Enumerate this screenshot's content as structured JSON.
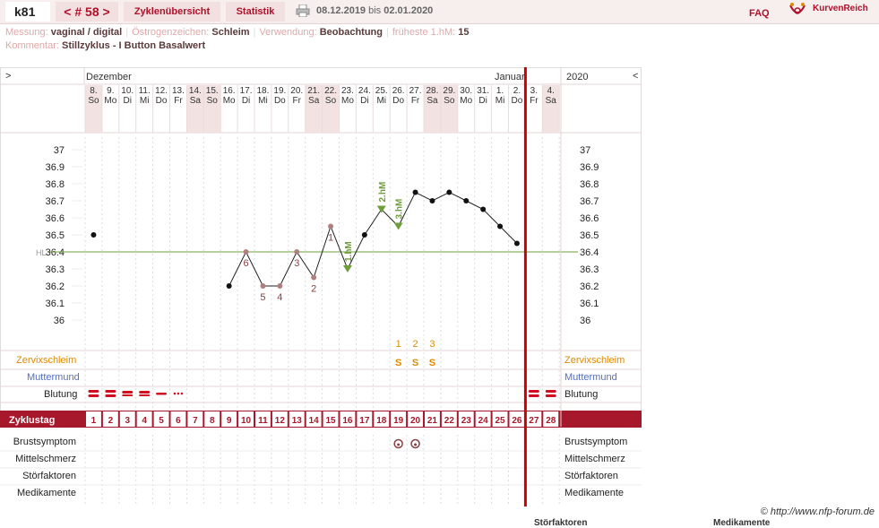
{
  "topbar": {
    "user": "k81",
    "cycle_label": "< # 58 >",
    "overview_label": "Zyklenübersicht",
    "statistics_label": "Statistik",
    "date_from": "08.12.2019",
    "date_to_word": "bis",
    "date_to": "02.01.2020",
    "faq_label": "FAQ",
    "brand": "KurvenReich"
  },
  "info": {
    "measurement_label": "Messung:",
    "measurement_value": "vaginal / digital",
    "estrogen_label": "Östrogenzeichen:",
    "estrogen_value": "Schleim",
    "usage_label": "Verwendung:",
    "usage_value": "Beobachtung",
    "earliest_label": "früheste 1.hM:",
    "earliest_value": "15",
    "comment_label": "Kommentar:",
    "comment_value": "Stillzyklus - I Button Basalwert"
  },
  "chart": {
    "nav_left": ">",
    "nav_right": "<",
    "month_dec": "Dezember",
    "month_jan": "Januar",
    "year": "2020",
    "days": [
      {
        "d": "8.",
        "w": "So",
        "we": true
      },
      {
        "d": "9.",
        "w": "Mo",
        "we": false
      },
      {
        "d": "10.",
        "w": "Di",
        "we": false
      },
      {
        "d": "11.",
        "w": "Mi",
        "we": false
      },
      {
        "d": "12.",
        "w": "Do",
        "we": false
      },
      {
        "d": "13.",
        "w": "Fr",
        "we": false
      },
      {
        "d": "14.",
        "w": "Sa",
        "we": true
      },
      {
        "d": "15.",
        "w": "So",
        "we": true
      },
      {
        "d": "16.",
        "w": "Mo",
        "we": false
      },
      {
        "d": "17.",
        "w": "Di",
        "we": false
      },
      {
        "d": "18.",
        "w": "Mi",
        "we": false
      },
      {
        "d": "19.",
        "w": "Do",
        "we": false
      },
      {
        "d": "20.",
        "w": "Fr",
        "we": false
      },
      {
        "d": "21.",
        "w": "Sa",
        "we": true
      },
      {
        "d": "22.",
        "w": "So",
        "we": true
      },
      {
        "d": "23.",
        "w": "Mo",
        "we": false
      },
      {
        "d": "24.",
        "w": "Di",
        "we": false
      },
      {
        "d": "25.",
        "w": "Mi",
        "we": false
      },
      {
        "d": "26.",
        "w": "Do",
        "we": false
      },
      {
        "d": "27.",
        "w": "Fr",
        "we": false
      },
      {
        "d": "28.",
        "w": "Sa",
        "we": true
      },
      {
        "d": "29.",
        "w": "So",
        "we": true
      },
      {
        "d": "30.",
        "w": "Mo",
        "we": false
      },
      {
        "d": "31.",
        "w": "Di",
        "we": false
      },
      {
        "d": "1.",
        "w": "Mi",
        "we": false
      },
      {
        "d": "2.",
        "w": "Do",
        "we": false
      },
      {
        "d": "3.",
        "w": "Fr",
        "we": false
      },
      {
        "d": "4.",
        "w": "Sa",
        "we": true
      }
    ],
    "y_ticks": [
      "37",
      "36.9",
      "36.8",
      "36.7",
      "36.6",
      "36.5",
      "36.4",
      "36.3",
      "36.2",
      "36.1",
      "36"
    ],
    "hl_label": "HL",
    "cover_line": 36.4,
    "temps": [
      36.5,
      null,
      null,
      null,
      null,
      null,
      null,
      null,
      36.2,
      36.4,
      36.2,
      36.2,
      36.4,
      36.25,
      36.55,
      36.3,
      36.5,
      36.65,
      36.55,
      36.75,
      36.7,
      36.75,
      36.7,
      36.65,
      36.55,
      36.45,
      null,
      null
    ],
    "low_numbers": [
      {
        "day": 9,
        "n": "6",
        "pos": "below"
      },
      {
        "day": 10,
        "n": "5",
        "pos": "below"
      },
      {
        "day": 11,
        "n": "4",
        "pos": "below"
      },
      {
        "day": 12,
        "n": "3",
        "pos": "below"
      },
      {
        "day": 13,
        "n": "2",
        "pos": "below"
      },
      {
        "day": 14,
        "n": "1",
        "pos": "below"
      }
    ],
    "hm_labels": [
      {
        "day": 15,
        "label": "1.hM"
      },
      {
        "day": 17,
        "label": "2.hM"
      },
      {
        "day": 18,
        "label": "3.hM"
      }
    ],
    "cervix_numbers": [
      {
        "day": 18,
        "n": "1"
      },
      {
        "day": 19,
        "n": "2"
      },
      {
        "day": 20,
        "n": "3"
      }
    ],
    "cervix_codes": [
      {
        "day": 18,
        "c": "S"
      },
      {
        "day": 19,
        "c": "S"
      },
      {
        "day": 20,
        "c": "S"
      }
    ],
    "rows": {
      "zervix": "Zervixschleim",
      "muttermund": "Muttermund",
      "blutung": "Blutung"
    },
    "bleeding": [
      {
        "day": 1,
        "t": "heavy"
      },
      {
        "day": 2,
        "t": "heavy"
      },
      {
        "day": 3,
        "t": "medium"
      },
      {
        "day": 4,
        "t": "medium"
      },
      {
        "day": 5,
        "t": "light"
      },
      {
        "day": 6,
        "t": "spot"
      },
      {
        "day": 27,
        "t": "heavy"
      },
      {
        "day": 28,
        "t": "heavy"
      }
    ],
    "cycleday_label": "Zyklustag",
    "cycle_days": [
      "1",
      "2",
      "3",
      "4",
      "5",
      "6",
      "7",
      "8",
      "9",
      "10",
      "11",
      "12",
      "13",
      "14",
      "15",
      "16",
      "17",
      "18",
      "19",
      "20",
      "21",
      "22",
      "23",
      "24",
      "25",
      "26",
      "27",
      "28"
    ],
    "bottom_rows": [
      "Brustsymptom",
      "Mittelschmerz",
      "Störfaktoren",
      "Medikamente"
    ],
    "breast_days": [
      19,
      20
    ]
  },
  "footer": {
    "credit": "© http://www.nfp-forum.de",
    "cut1": "Störfaktoren",
    "cut2": "Medikamente"
  },
  "colors": {
    "accent": "#b0102a",
    "header_bg": "#f7eeee",
    "weekend": "#f2e2e2",
    "grid": "#e0d0d0",
    "temp_green": "#6f9f3a",
    "orange": "#e08a00",
    "blue": "#5570c0"
  }
}
